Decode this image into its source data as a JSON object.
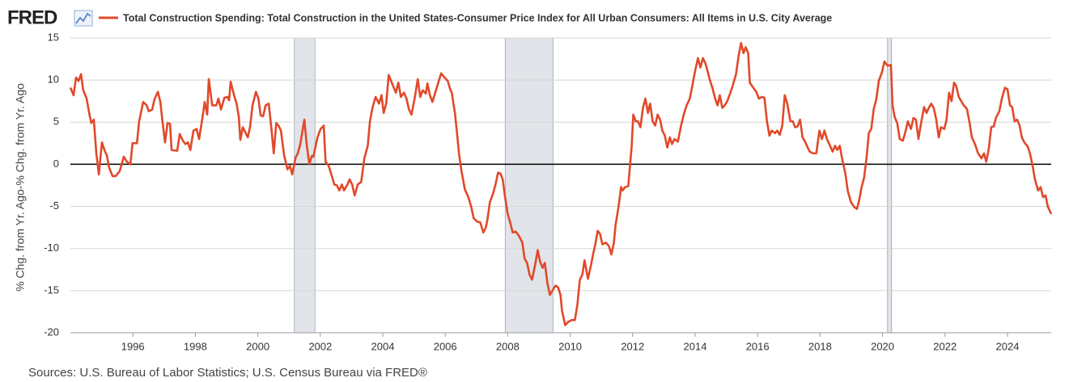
{
  "brand": "FRED",
  "chart_data": {
    "type": "line",
    "title": "Total Construction Spending: Total Construction in the United States-Consumer Price Index for All Urban Consumers: All Items in U.S. City Average",
    "y_label": "% Chg. from Yr. Ago-% Chg. from Yr. Ago",
    "source": "Sources: U.S. Bureau of Labor Statistics; U.S. Census Bureau via FRED®",
    "xlim": [
      1994,
      2025.4
    ],
    "xticks": [
      1996,
      1998,
      2000,
      2002,
      2004,
      2006,
      2008,
      2010,
      2012,
      2014,
      2016,
      2018,
      2020,
      2022,
      2024
    ],
    "ylim": [
      -20,
      15
    ],
    "yticks": [
      -20,
      -15,
      -10,
      -5,
      0,
      5,
      10,
      15
    ],
    "grid": true,
    "recessions": [
      [
        2001.17,
        2001.83
      ],
      [
        2007.92,
        2009.45
      ],
      [
        2020.16,
        2020.29
      ]
    ],
    "recession_color": "#e1e5ea",
    "x": [
      1994.0,
      1994.1,
      1994.18,
      1994.26,
      1994.34,
      1994.41,
      1994.52,
      1994.6,
      1994.67,
      1994.75,
      1994.83,
      1994.91,
      1995.01,
      1995.09,
      1995.17,
      1995.24,
      1995.35,
      1995.45,
      1995.58,
      1995.71,
      1995.81,
      1995.92,
      1995.99,
      1996.13,
      1996.2,
      1996.33,
      1996.44,
      1996.51,
      1996.62,
      1996.69,
      1996.8,
      1996.88,
      1996.96,
      1997.03,
      1997.11,
      1997.19,
      1997.24,
      1997.42,
      1997.5,
      1997.6,
      1997.68,
      1997.76,
      1997.84,
      1997.94,
      1998.04,
      1998.12,
      1998.23,
      1998.3,
      1998.38,
      1998.43,
      1998.54,
      1998.67,
      1998.74,
      1998.82,
      1998.93,
      1999.03,
      1999.08,
      1999.13,
      1999.24,
      1999.32,
      1999.39,
      1999.44,
      1999.52,
      1999.6,
      1999.68,
      1999.75,
      1999.83,
      1999.94,
      2000.02,
      2000.09,
      2000.17,
      2000.25,
      2000.35,
      2000.43,
      2000.51,
      2000.59,
      2000.66,
      2000.74,
      2000.84,
      2000.95,
      2001.03,
      2001.1,
      2001.21,
      2001.28,
      2001.36,
      2001.44,
      2001.49,
      2001.57,
      2001.65,
      2001.73,
      2001.78,
      2001.91,
      2002.01,
      2002.11,
      2002.17,
      2002.27,
      2002.37,
      2002.45,
      2002.53,
      2002.61,
      2002.69,
      2002.76,
      2002.87,
      2002.94,
      2003.02,
      2003.1,
      2003.2,
      2003.31,
      2003.41,
      2003.52,
      2003.59,
      2003.67,
      2003.77,
      2003.88,
      2003.96,
      2004.03,
      2004.11,
      2004.19,
      2004.32,
      2004.42,
      2004.5,
      2004.58,
      2004.68,
      2004.76,
      2004.84,
      2004.92,
      2005.02,
      2005.12,
      2005.2,
      2005.28,
      2005.38,
      2005.43,
      2005.51,
      2005.59,
      2005.67,
      2005.77,
      2005.87,
      2005.98,
      2006.08,
      2006.16,
      2006.21,
      2006.31,
      2006.37,
      2006.44,
      2006.52,
      2006.63,
      2006.73,
      2006.83,
      2006.91,
      2007.02,
      2007.12,
      2007.22,
      2007.3,
      2007.35,
      2007.43,
      2007.53,
      2007.61,
      2007.69,
      2007.77,
      2007.84,
      2007.92,
      2008.0,
      2008.08,
      2008.16,
      2008.26,
      2008.36,
      2008.47,
      2008.54,
      2008.62,
      2008.7,
      2008.78,
      2008.88,
      2008.96,
      2009.04,
      2009.12,
      2009.19,
      2009.27,
      2009.35,
      2009.43,
      2009.53,
      2009.61,
      2009.69,
      2009.74,
      2009.84,
      2009.94,
      2010.05,
      2010.15,
      2010.23,
      2010.31,
      2010.39,
      2010.46,
      2010.57,
      2010.67,
      2010.75,
      2010.8,
      2010.88,
      2010.96,
      2011.03,
      2011.14,
      2011.24,
      2011.32,
      2011.4,
      2011.45,
      2011.55,
      2011.63,
      2011.68,
      2011.76,
      2011.86,
      2011.97,
      2012.02,
      2012.1,
      2012.17,
      2012.25,
      2012.33,
      2012.41,
      2012.49,
      2012.56,
      2012.64,
      2012.72,
      2012.8,
      2012.88,
      2012.95,
      2013.03,
      2013.11,
      2013.19,
      2013.26,
      2013.34,
      2013.45,
      2013.55,
      2013.65,
      2013.73,
      2013.83,
      2013.91,
      2013.99,
      2014.09,
      2014.17,
      2014.25,
      2014.33,
      2014.41,
      2014.48,
      2014.56,
      2014.64,
      2014.72,
      2014.79,
      2014.87,
      2014.95,
      2015.03,
      2015.13,
      2015.21,
      2015.31,
      2015.39,
      2015.47,
      2015.55,
      2015.62,
      2015.7,
      2015.75,
      2015.86,
      2015.96,
      2016.04,
      2016.14,
      2016.22,
      2016.3,
      2016.38,
      2016.45,
      2016.56,
      2016.63,
      2016.71,
      2016.79,
      2016.87,
      2016.95,
      2017.05,
      2017.13,
      2017.2,
      2017.28,
      2017.36,
      2017.44,
      2017.52,
      2017.59,
      2017.67,
      2017.78,
      2017.88,
      2017.98,
      2018.06,
      2018.14,
      2018.22,
      2018.32,
      2018.4,
      2018.48,
      2018.55,
      2018.63,
      2018.71,
      2018.81,
      2018.89,
      2018.99,
      2019.1,
      2019.18,
      2019.25,
      2019.33,
      2019.41,
      2019.49,
      2019.56,
      2019.64,
      2019.72,
      2019.8,
      2019.88,
      2019.98,
      2020.06,
      2020.16,
      2020.27,
      2020.32,
      2020.39,
      2020.47,
      2020.55,
      2020.65,
      2020.73,
      2020.81,
      2020.91,
      2020.99,
      2021.07,
      2021.15,
      2021.22,
      2021.33,
      2021.41,
      2021.48,
      2021.56,
      2021.64,
      2021.72,
      2021.8,
      2021.87,
      2021.98,
      2022.05,
      2022.13,
      2022.21,
      2022.29,
      2022.36,
      2022.44,
      2022.52,
      2022.6,
      2022.7,
      2022.78,
      2022.86,
      2022.96,
      2023.06,
      2023.17,
      2023.25,
      2023.32,
      2023.4,
      2023.48,
      2023.56,
      2023.63,
      2023.74,
      2023.82,
      2023.92,
      2024.0,
      2024.08,
      2024.15,
      2024.23,
      2024.31,
      2024.39,
      2024.46,
      2024.54,
      2024.65,
      2024.72,
      2024.8,
      2024.88,
      2024.98,
      2025.06,
      2025.14,
      2025.22,
      2025.29,
      2025.4
    ],
    "series": [
      {
        "name": "Total Construction Spending: Total Construction in the United States-Consumer Price Index for All Urban Consumers: All Items in U.S. City Average",
        "color": "#e1492a",
        "values": [
          9.1,
          8.2,
          10.3,
          9.9,
          10.7,
          8.8,
          7.8,
          6.1,
          4.9,
          5.3,
          1.3,
          -1.2,
          2.6,
          1.7,
          1.0,
          -0.4,
          -1.4,
          -1.4,
          -0.8,
          0.9,
          0.3,
          0.0,
          2.5,
          2.5,
          5.1,
          7.4,
          7.0,
          6.3,
          6.5,
          7.7,
          8.6,
          7.4,
          4.7,
          2.6,
          4.9,
          4.8,
          1.7,
          1.6,
          3.6,
          2.8,
          2.4,
          2.6,
          1.7,
          4.0,
          4.2,
          3.0,
          5.6,
          7.4,
          5.9,
          10.1,
          7.0,
          7.0,
          7.8,
          6.5,
          7.9,
          8.0,
          7.6,
          9.8,
          8.2,
          7.2,
          5.7,
          2.9,
          4.4,
          3.8,
          3.2,
          4.4,
          7.0,
          8.6,
          7.8,
          5.8,
          5.7,
          7.0,
          7.2,
          4.4,
          1.3,
          4.9,
          4.6,
          4.0,
          1.1,
          -0.6,
          -0.2,
          -1.2,
          0.8,
          1.3,
          2.4,
          4.2,
          5.3,
          2.2,
          0.0,
          1.0,
          0.9,
          3.2,
          4.2,
          4.6,
          0.3,
          -0.2,
          -1.4,
          -2.4,
          -2.5,
          -3.1,
          -2.4,
          -3.1,
          -2.4,
          -1.8,
          -2.4,
          -3.7,
          -2.4,
          -2.1,
          0.7,
          2.2,
          5.1,
          6.7,
          8.0,
          7.2,
          8.2,
          6.1,
          7.2,
          10.6,
          9.4,
          8.5,
          9.7,
          8.0,
          8.5,
          7.8,
          6.5,
          5.9,
          7.8,
          10.1,
          8.0,
          8.8,
          8.4,
          9.6,
          8.2,
          7.4,
          8.4,
          9.6,
          10.8,
          10.3,
          9.9,
          8.9,
          8.5,
          6.1,
          4.0,
          1.3,
          -0.8,
          -3.0,
          -3.8,
          -5.0,
          -6.4,
          -6.8,
          -6.9,
          -8.1,
          -7.5,
          -6.6,
          -4.5,
          -3.5,
          -2.4,
          -1.0,
          -1.1,
          -1.8,
          -4.0,
          -5.9,
          -6.9,
          -8.1,
          -8.0,
          -8.5,
          -9.3,
          -11.2,
          -11.7,
          -13.1,
          -13.7,
          -11.9,
          -10.2,
          -11.6,
          -12.3,
          -11.7,
          -14.1,
          -15.5,
          -15.0,
          -14.4,
          -14.6,
          -15.5,
          -17.4,
          -19.1,
          -18.7,
          -18.5,
          -18.5,
          -16.7,
          -13.7,
          -13.1,
          -11.4,
          -13.6,
          -11.9,
          -10.4,
          -9.6,
          -7.9,
          -8.3,
          -9.5,
          -9.3,
          -9.7,
          -10.7,
          -9.3,
          -7.3,
          -5.0,
          -2.7,
          -3.1,
          -2.7,
          -2.6,
          2.2,
          5.9,
          5.1,
          5.1,
          4.4,
          6.7,
          7.8,
          6.1,
          7.2,
          5.1,
          4.6,
          5.9,
          5.3,
          4.0,
          3.4,
          2.0,
          3.2,
          2.4,
          3.0,
          2.7,
          4.6,
          6.1,
          7.0,
          7.8,
          9.3,
          10.9,
          12.6,
          11.5,
          12.6,
          12.0,
          10.9,
          9.9,
          9.0,
          7.8,
          7.0,
          8.2,
          6.7,
          7.0,
          7.5,
          8.5,
          9.4,
          10.7,
          12.8,
          14.4,
          13.2,
          13.9,
          13.2,
          9.7,
          9.1,
          8.6,
          7.8,
          8.0,
          7.9,
          5.1,
          3.4,
          4.0,
          3.7,
          4.0,
          3.5,
          4.6,
          8.2,
          7.2,
          5.1,
          5.1,
          4.4,
          4.5,
          5.3,
          3.2,
          2.7,
          2.1,
          1.5,
          1.3,
          1.3,
          4.0,
          3.0,
          4.0,
          3.0,
          2.2,
          1.5,
          2.2,
          1.7,
          2.2,
          0.6,
          -1.1,
          -3.2,
          -4.5,
          -5.1,
          -5.3,
          -4.3,
          -2.7,
          -1.6,
          0.8,
          3.7,
          4.2,
          6.6,
          7.7,
          9.9,
          10.9,
          12.2,
          11.7,
          11.8,
          7.0,
          5.6,
          4.9,
          3.0,
          2.8,
          3.8,
          5.1,
          4.2,
          5.5,
          5.3,
          3.0,
          4.6,
          6.8,
          6.1,
          6.7,
          7.2,
          6.7,
          5.3,
          3.2,
          4.4,
          4.2,
          5.3,
          8.5,
          7.5,
          9.7,
          9.3,
          8.0,
          7.5,
          7.0,
          6.6,
          5.1,
          3.2,
          2.4,
          1.3,
          0.7,
          1.3,
          0.3,
          1.8,
          4.4,
          4.5,
          5.5,
          6.3,
          7.8,
          9.1,
          8.9,
          7.0,
          6.8,
          5.1,
          5.3,
          4.6,
          3.2,
          2.6,
          2.1,
          1.3,
          -0.1,
          -1.8,
          -3.1,
          -2.7,
          -3.9,
          -3.7,
          -5.0,
          -5.9
        ]
      }
    ]
  }
}
